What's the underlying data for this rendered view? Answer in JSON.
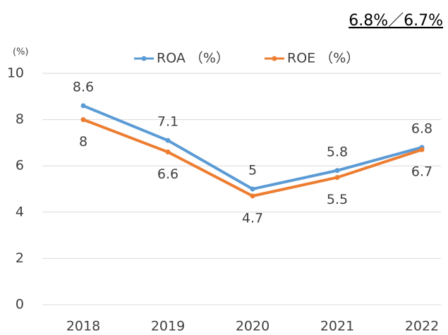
{
  "chart_data": {
    "type": "line",
    "title": "6.8%／6.7%",
    "y_axis_label": "(%)",
    "categories": [
      "2018",
      "2019",
      "2020",
      "2021",
      "2022"
    ],
    "series": [
      {
        "name": "ROA （%）",
        "color": "#5b9bd5",
        "values": [
          8.6,
          7.1,
          5,
          5.8,
          6.8
        ]
      },
      {
        "name": "ROE （%）",
        "color": "#ed7d31",
        "values": [
          8,
          6.6,
          4.7,
          5.5,
          6.7
        ]
      }
    ],
    "ylim": [
      0,
      10
    ],
    "yticks": [
      0,
      2,
      4,
      6,
      8,
      10
    ],
    "grid": true,
    "legend": "top"
  }
}
